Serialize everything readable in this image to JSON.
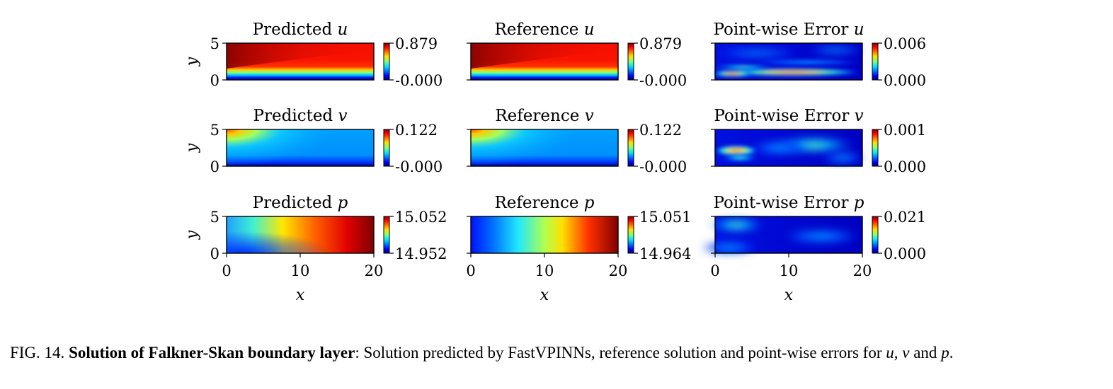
{
  "figure": {
    "axis": {
      "x_label": "x",
      "y_label": "y",
      "x_ticks": [
        "0",
        "10",
        "20"
      ],
      "y_ticks": [
        "5",
        "0"
      ]
    },
    "rows": [
      {
        "variable": "u",
        "panels": [
          {
            "kind": "predicted",
            "title_prefix": "Predicted",
            "colorbar_max": "0.879",
            "colorbar_min": "-0.000"
          },
          {
            "kind": "reference",
            "title_prefix": "Reference",
            "colorbar_max": "0.879",
            "colorbar_min": "-0.000"
          },
          {
            "kind": "error",
            "title_prefix": "Point-wise Error",
            "colorbar_max": "0.006",
            "colorbar_min": "0.000"
          }
        ]
      },
      {
        "variable": "v",
        "panels": [
          {
            "kind": "predicted",
            "title_prefix": "Predicted",
            "colorbar_max": "0.122",
            "colorbar_min": "-0.000"
          },
          {
            "kind": "reference",
            "title_prefix": "Reference",
            "colorbar_max": "0.122",
            "colorbar_min": "-0.000"
          },
          {
            "kind": "error",
            "title_prefix": "Point-wise Error",
            "colorbar_max": "0.001",
            "colorbar_min": "0.000"
          }
        ]
      },
      {
        "variable": "p",
        "panels": [
          {
            "kind": "predicted",
            "title_prefix": "Predicted",
            "colorbar_max": "15.052",
            "colorbar_min": "14.952"
          },
          {
            "kind": "reference",
            "title_prefix": "Reference",
            "colorbar_max": "15.051",
            "colorbar_min": "14.964"
          },
          {
            "kind": "error",
            "title_prefix": "Point-wise Error",
            "colorbar_max": "0.021",
            "colorbar_min": "0.000"
          }
        ]
      }
    ]
  },
  "caption": {
    "label": "FIG. 14.",
    "title": "Solution of Falkner-Skan boundary layer",
    "text_a": ": Solution predicted by FastVPINNs, reference solution and point-wise errors for ",
    "var_u": "u",
    "sep_1": ", ",
    "var_v": "v",
    "sep_2": " and ",
    "var_p": "p",
    "end": "."
  }
}
